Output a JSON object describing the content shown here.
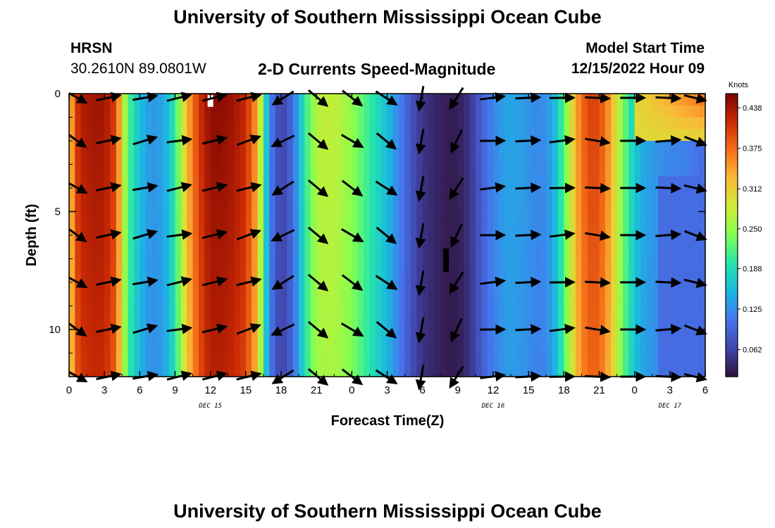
{
  "header": {
    "title": "University of Southern Mississippi Ocean Cube",
    "station": "HRSN",
    "coords": "30.2610N  89.0801W",
    "plot_title": "2-D Currents Speed-Magnitude",
    "model_label": "Model Start Time",
    "model_time": "12/15/2022 Hour 09"
  },
  "footer": {
    "title": "University of Southern Mississippi Ocean Cube"
  },
  "colors": {
    "arrow": "#000000",
    "frame": "#000000"
  },
  "chart_data": {
    "type": "heatmap",
    "title": "2-D Currents Speed-Magnitude",
    "xlabel": "Forecast Time(Z)",
    "ylabel": "Depth (ft)",
    "x_range_hours": [
      0,
      54
    ],
    "y_range_ft": [
      0,
      12
    ],
    "x_ticks": [
      {
        "h": 0,
        "label": "0"
      },
      {
        "h": 3,
        "label": "3"
      },
      {
        "h": 6,
        "label": "6"
      },
      {
        "h": 9,
        "label": "9"
      },
      {
        "h": 12,
        "label": "12"
      },
      {
        "h": 15,
        "label": "15"
      },
      {
        "h": 18,
        "label": "18"
      },
      {
        "h": 21,
        "label": "21"
      },
      {
        "h": 24,
        "label": "0"
      },
      {
        "h": 27,
        "label": "3"
      },
      {
        "h": 30,
        "label": "6"
      },
      {
        "h": 33,
        "label": "9"
      },
      {
        "h": 36,
        "label": "12"
      },
      {
        "h": 39,
        "label": "15"
      },
      {
        "h": 42,
        "label": "18"
      },
      {
        "h": 45,
        "label": "21"
      },
      {
        "h": 48,
        "label": "0"
      },
      {
        "h": 51,
        "label": "3"
      },
      {
        "h": 54,
        "label": "6"
      }
    ],
    "y_ticks": [
      {
        "d": 0,
        "label": "0"
      },
      {
        "d": 5,
        "label": "5"
      },
      {
        "d": 10,
        "label": "10"
      }
    ],
    "date_labels": [
      {
        "h": 12,
        "label": "DEC 15"
      },
      {
        "h": 36,
        "label": "DEC 16"
      },
      {
        "h": 51,
        "label": "DEC 17"
      }
    ],
    "colorbar": {
      "label": "Knots",
      "range": [
        0.02,
        0.46
      ],
      "ticks": [
        "0.438",
        "0.375",
        "0.312",
        "0.250",
        "0.188",
        "0.125",
        "0.062"
      ],
      "tick_values": [
        0.438,
        0.375,
        0.312,
        0.25,
        0.188,
        0.125,
        0.062
      ]
    },
    "speed_profile_hours": [
      0,
      0.5,
      1,
      2,
      3,
      4,
      4.5,
      5,
      6,
      7,
      8,
      9,
      10,
      11,
      12,
      13,
      14,
      15,
      16,
      16.5,
      17,
      18,
      19,
      20,
      21,
      22,
      23,
      24,
      25,
      26,
      27,
      28,
      29,
      30,
      31,
      32,
      33,
      34,
      35,
      36,
      37,
      38,
      39,
      40,
      41,
      42,
      43,
      44,
      45,
      46,
      47,
      48,
      49,
      50,
      51,
      52,
      53,
      54
    ],
    "speed_profile_knots": [
      0.3,
      0.4,
      0.43,
      0.44,
      0.44,
      0.4,
      0.3,
      0.22,
      0.16,
      0.13,
      0.14,
      0.2,
      0.33,
      0.41,
      0.45,
      0.45,
      0.44,
      0.42,
      0.34,
      0.22,
      0.12,
      0.06,
      0.1,
      0.2,
      0.27,
      0.28,
      0.27,
      0.25,
      0.22,
      0.19,
      0.16,
      0.12,
      0.08,
      0.05,
      0.04,
      0.03,
      0.03,
      0.05,
      0.09,
      0.12,
      0.14,
      0.14,
      0.13,
      0.12,
      0.14,
      0.22,
      0.34,
      0.4,
      0.4,
      0.34,
      0.24,
      0.17,
      0.14,
      0.13,
      0.12,
      0.12,
      0.11,
      0.1
    ],
    "arrow_times_hours": [
      0.5,
      3.3,
      6.4,
      9.3,
      12.3,
      15.2,
      18.2,
      21.1,
      24.0,
      26.9,
      29.9,
      32.9,
      35.9,
      38.9,
      41.8,
      44.8,
      47.8,
      50.8,
      53.2
    ],
    "arrow_depths_ft": [
      0,
      2,
      4,
      6,
      8,
      10,
      12
    ],
    "arrow_directions_deg": [
      -25,
      12,
      12,
      12,
      14,
      16,
      -150,
      -40,
      -35,
      -35,
      -100,
      -120,
      5,
      3,
      3,
      -5,
      0,
      0,
      -15
    ],
    "missing_cells": [
      {
        "hour": 12,
        "depth_ft": [
          0,
          0.5
        ]
      },
      {
        "hour": 32,
        "depth_ft": [
          6.5,
          7.5
        ]
      }
    ]
  }
}
